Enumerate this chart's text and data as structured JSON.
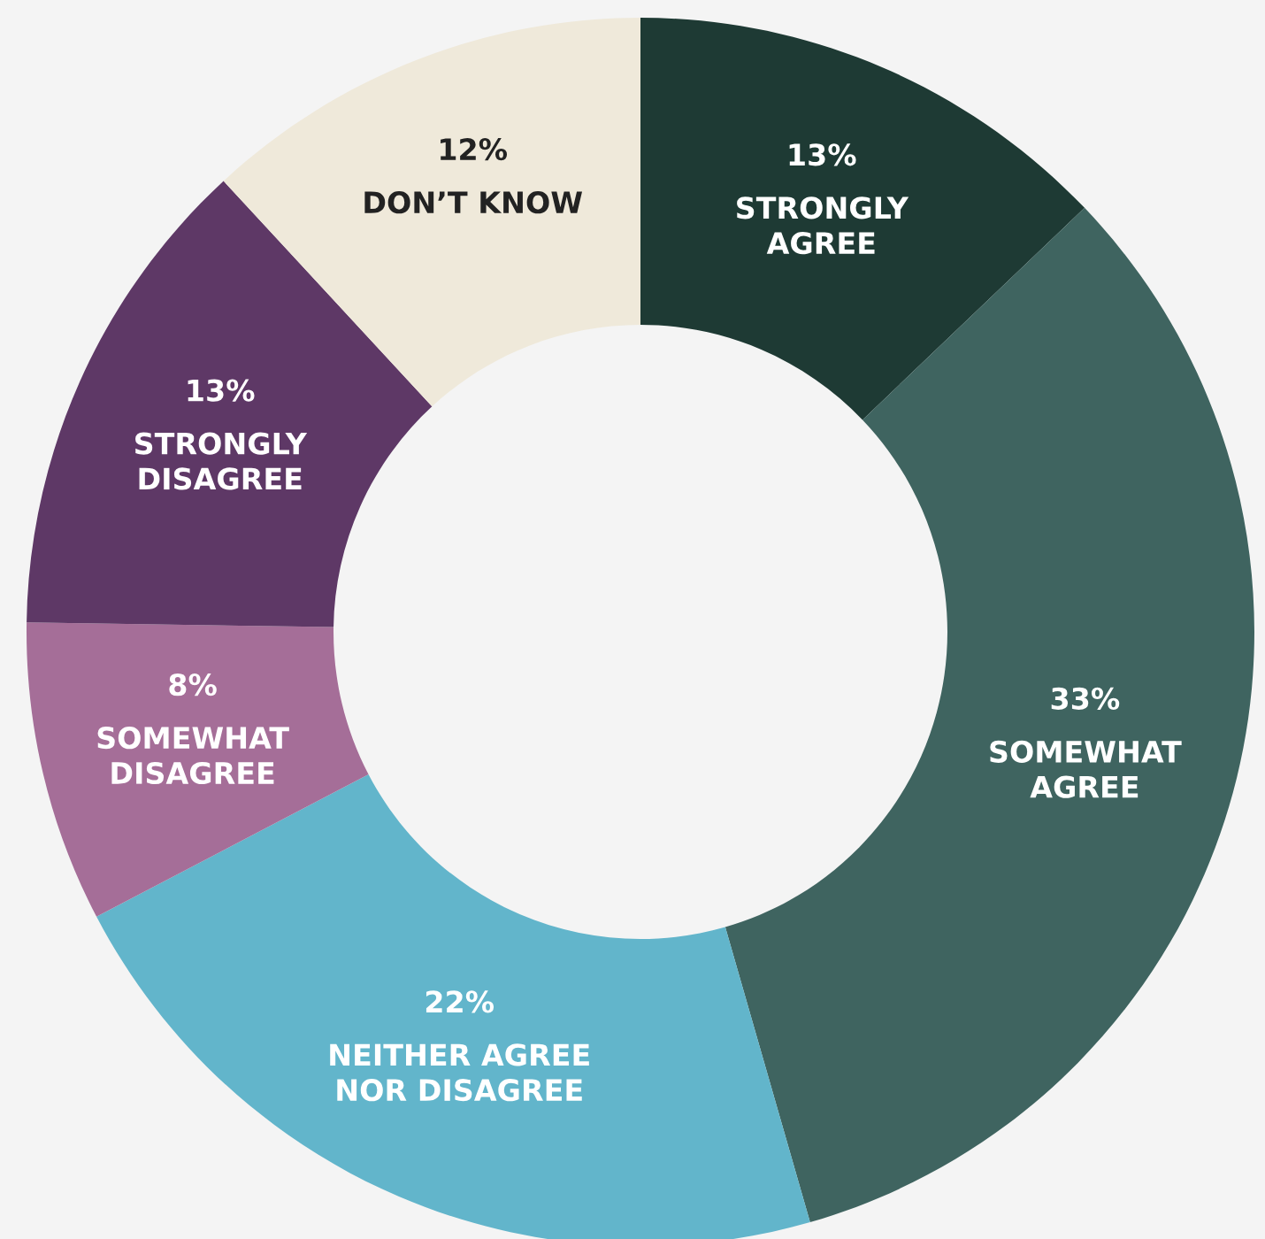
{
  "chart_data": {
    "type": "donut",
    "categories": [
      "STRONGLY AGREE",
      "SOMEWHAT AGREE",
      "NEITHER AGREE NOR DISAGREE",
      "SOMEWHAT DISAGREE",
      "STRONGLY DISAGREE",
      "DON’T KNOW"
    ],
    "values": [
      13,
      33,
      22,
      8,
      13,
      12
    ],
    "colors": [
      "#1e3a34",
      "#3f6460",
      "#62b5cb",
      "#a56e98",
      "#5e3866",
      "#efe9da"
    ],
    "value_labels": [
      "13%",
      "33%",
      "22%",
      "8%",
      "13%",
      "12%"
    ],
    "legend": false
  }
}
